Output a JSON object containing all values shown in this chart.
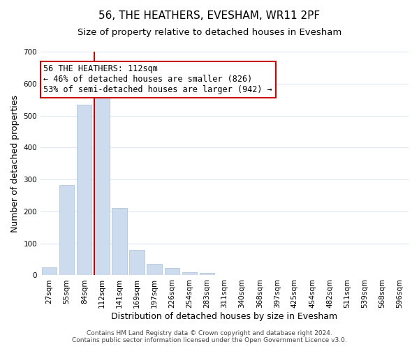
{
  "title": "56, THE HEATHERS, EVESHAM, WR11 2PF",
  "subtitle": "Size of property relative to detached houses in Evesham",
  "xlabel": "Distribution of detached houses by size in Evesham",
  "ylabel": "Number of detached properties",
  "bar_labels": [
    "27sqm",
    "55sqm",
    "84sqm",
    "112sqm",
    "141sqm",
    "169sqm",
    "197sqm",
    "226sqm",
    "254sqm",
    "283sqm",
    "311sqm",
    "340sqm",
    "368sqm",
    "397sqm",
    "425sqm",
    "454sqm",
    "482sqm",
    "511sqm",
    "539sqm",
    "568sqm",
    "596sqm"
  ],
  "bar_values": [
    25,
    283,
    533,
    583,
    211,
    80,
    35,
    23,
    10,
    8,
    0,
    0,
    0,
    0,
    0,
    0,
    0,
    0,
    0,
    0,
    0
  ],
  "bar_color": "#ccdcee",
  "bar_edge_color": "#a8bfd4",
  "vline_color": "#cc0000",
  "annotation_text": "56 THE HEATHERS: 112sqm\n← 46% of detached houses are smaller (826)\n53% of semi-detached houses are larger (942) →",
  "annotation_box_color": "#ffffff",
  "annotation_box_edge": "#cc0000",
  "ylim": [
    0,
    700
  ],
  "yticks": [
    0,
    100,
    200,
    300,
    400,
    500,
    600,
    700
  ],
  "footer_line1": "Contains HM Land Registry data © Crown copyright and database right 2024.",
  "footer_line2": "Contains public sector information licensed under the Open Government Licence v3.0.",
  "background_color": "#ffffff",
  "grid_color": "#dce8f4",
  "title_fontsize": 11,
  "subtitle_fontsize": 9.5,
  "axis_label_fontsize": 9,
  "tick_fontsize": 7.5,
  "annotation_fontsize": 8.5,
  "footer_fontsize": 6.5
}
